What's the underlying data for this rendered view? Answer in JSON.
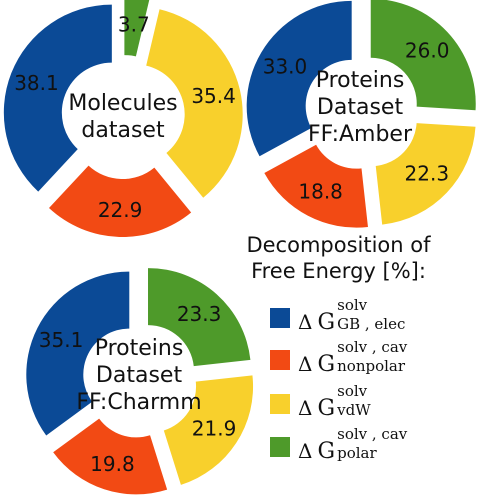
{
  "chart_data": [
    {
      "type": "pie",
      "title": "Molecules dataset",
      "title_lines": [
        "Molecules",
        "dataset"
      ],
      "categories": [
        "GB,elec",
        "nonpolar",
        "vdW",
        "polar"
      ],
      "values": [
        38.1,
        22.9,
        35.4,
        3.7
      ],
      "labels": [
        "38.1",
        "22.9",
        "35.4",
        "3.7"
      ]
    },
    {
      "type": "pie",
      "title": "Proteins Dataset FF:Amber",
      "title_lines": [
        "Proteins",
        "Dataset",
        "FF:Amber"
      ],
      "categories": [
        "GB,elec",
        "nonpolar",
        "vdW",
        "polar"
      ],
      "values": [
        33.0,
        18.8,
        22.3,
        26.0
      ],
      "labels": [
        "33.0",
        "18.8",
        "22.3",
        "26.0"
      ]
    },
    {
      "type": "pie",
      "title": "Proteins Dataset FF:Charmm",
      "title_lines": [
        "Proteins",
        "Dataset",
        "FF:Charmm"
      ],
      "categories": [
        "GB,elec",
        "nonpolar",
        "vdW",
        "polar"
      ],
      "values": [
        35.1,
        19.8,
        21.9,
        23.3
      ],
      "labels": [
        "35.1",
        "19.8",
        "21.9",
        "23.3"
      ]
    }
  ],
  "legend": {
    "title_line1": "Decomposition of",
    "title_line2": "Free Energy  [%]:",
    "items": [
      {
        "delta": "Δ",
        "g": "G",
        "sup": "solv",
        "sub": "GB , elec",
        "color": "#0b4a96"
      },
      {
        "delta": "Δ",
        "g": "G",
        "sup": "solv , cav",
        "sub": "nonpolar",
        "color": "#f24a14"
      },
      {
        "delta": "Δ",
        "g": "G",
        "sup": "solv",
        "sub": "vdW",
        "color": "#f8d02c"
      },
      {
        "delta": "Δ",
        "g": "G",
        "sup": "solv , cav",
        "sub": "polar",
        "color": "#4e9a2a"
      }
    ]
  },
  "colors": {
    "GB,elec": "#0b4a96",
    "nonpolar": "#f24a14",
    "vdW": "#f8d02c",
    "polar": "#4e9a2a"
  }
}
